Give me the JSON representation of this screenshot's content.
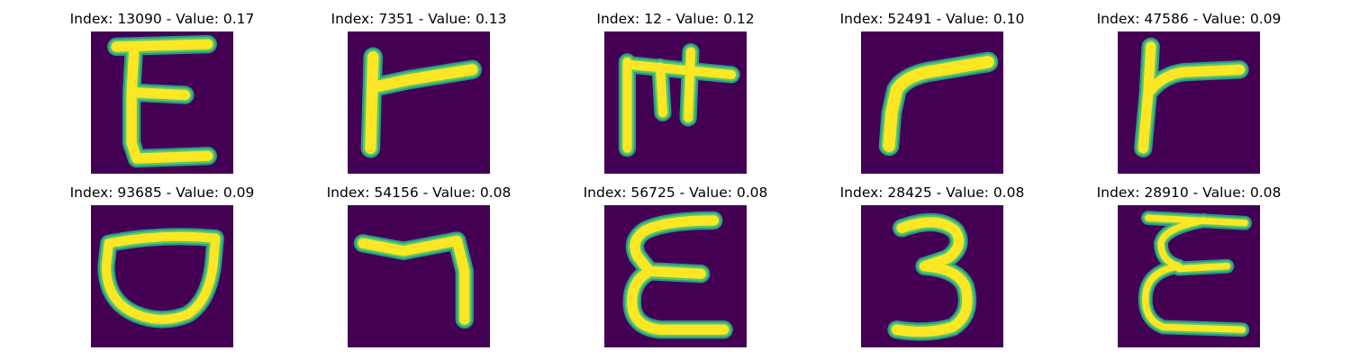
{
  "colors": {
    "background": "#440154",
    "stroke_edge": "#2a9a8a",
    "stroke_mid": "#5cc863",
    "stroke_core": "#fde725"
  },
  "samples": [
    {
      "title": "Index: 13090 - Value: 0.17",
      "glyph": "E-form"
    },
    {
      "title": "Index: 7351 - Value: 0.13",
      "glyph": "stem-with-arm"
    },
    {
      "title": "Index: 12 - Value: 0.12",
      "glyph": "stem-with-double-arm"
    },
    {
      "title": "Index: 52491 - Value: 0.10",
      "glyph": "bent-stroke"
    },
    {
      "title": "Index: 47586 - Value: 0.09",
      "glyph": "stem-with-arm"
    },
    {
      "title": "Index: 93685 - Value: 0.09",
      "glyph": "bowl"
    },
    {
      "title": "Index: 54156 - Value: 0.08",
      "glyph": "seven-form"
    },
    {
      "title": "Index: 56725 - Value: 0.08",
      "glyph": "epsilon-form"
    },
    {
      "title": "Index: 28425 - Value: 0.08",
      "glyph": "three-form"
    },
    {
      "title": "Index: 28910 - Value: 0.08",
      "glyph": "epsilon-form"
    }
  ]
}
